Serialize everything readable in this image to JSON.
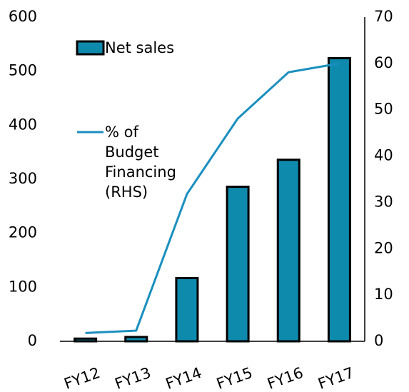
{
  "chart_data": {
    "type": "bar",
    "categories": [
      "FY12",
      "FY13",
      "FY14",
      "FY15",
      "FY16",
      "FY17"
    ],
    "series": [
      {
        "name": "Net sales",
        "type": "bar",
        "color": "#0e8aad",
        "values": [
          5,
          8,
          117,
          286,
          336,
          524
        ]
      },
      {
        "name": "% of Budget Financing (RHS)",
        "type": "line",
        "axis": "y2",
        "color": "#1a8fbf",
        "values": [
          1.8,
          2.3,
          31.8,
          48.1,
          58.1,
          60
        ]
      }
    ],
    "ylim": [
      0,
      600
    ],
    "yticks": [
      0,
      100,
      200,
      300,
      400,
      500,
      600
    ],
    "y2lim": [
      0,
      70
    ],
    "y2ticks": [
      0,
      10,
      20,
      30,
      40,
      50,
      60,
      70
    ],
    "legend": "upper left"
  }
}
